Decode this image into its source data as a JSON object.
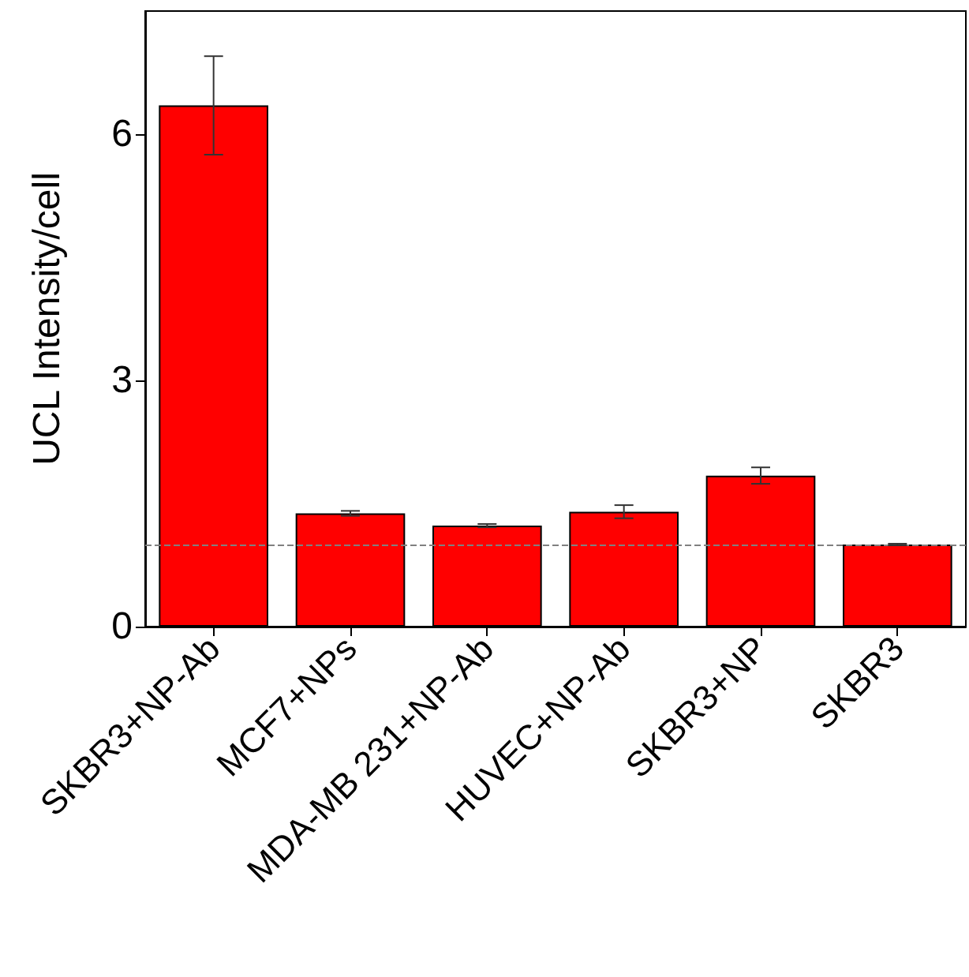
{
  "chart_data": {
    "type": "bar",
    "ylabel": "UCL Intensity/cell",
    "categories": [
      "SKBR3+NP-Ab",
      "MCF7+NPs",
      "MDA-MB 231+NP-Ab",
      "HUVEC+NP-Ab",
      "SKBR3+NP",
      "SKBR3"
    ],
    "values": [
      6.35,
      1.38,
      1.23,
      1.4,
      1.84,
      1.0
    ],
    "errors": [
      0.6,
      0.03,
      0.02,
      0.08,
      0.1,
      0.01
    ],
    "color": "#ff0000",
    "ylim": [
      0,
      7.5
    ],
    "yticks": [
      0,
      3,
      6
    ],
    "ref_lines": [
      {
        "axis": "y",
        "value": 1.0,
        "color": "#808080",
        "line_style": "dashed"
      }
    ],
    "grid": false
  }
}
